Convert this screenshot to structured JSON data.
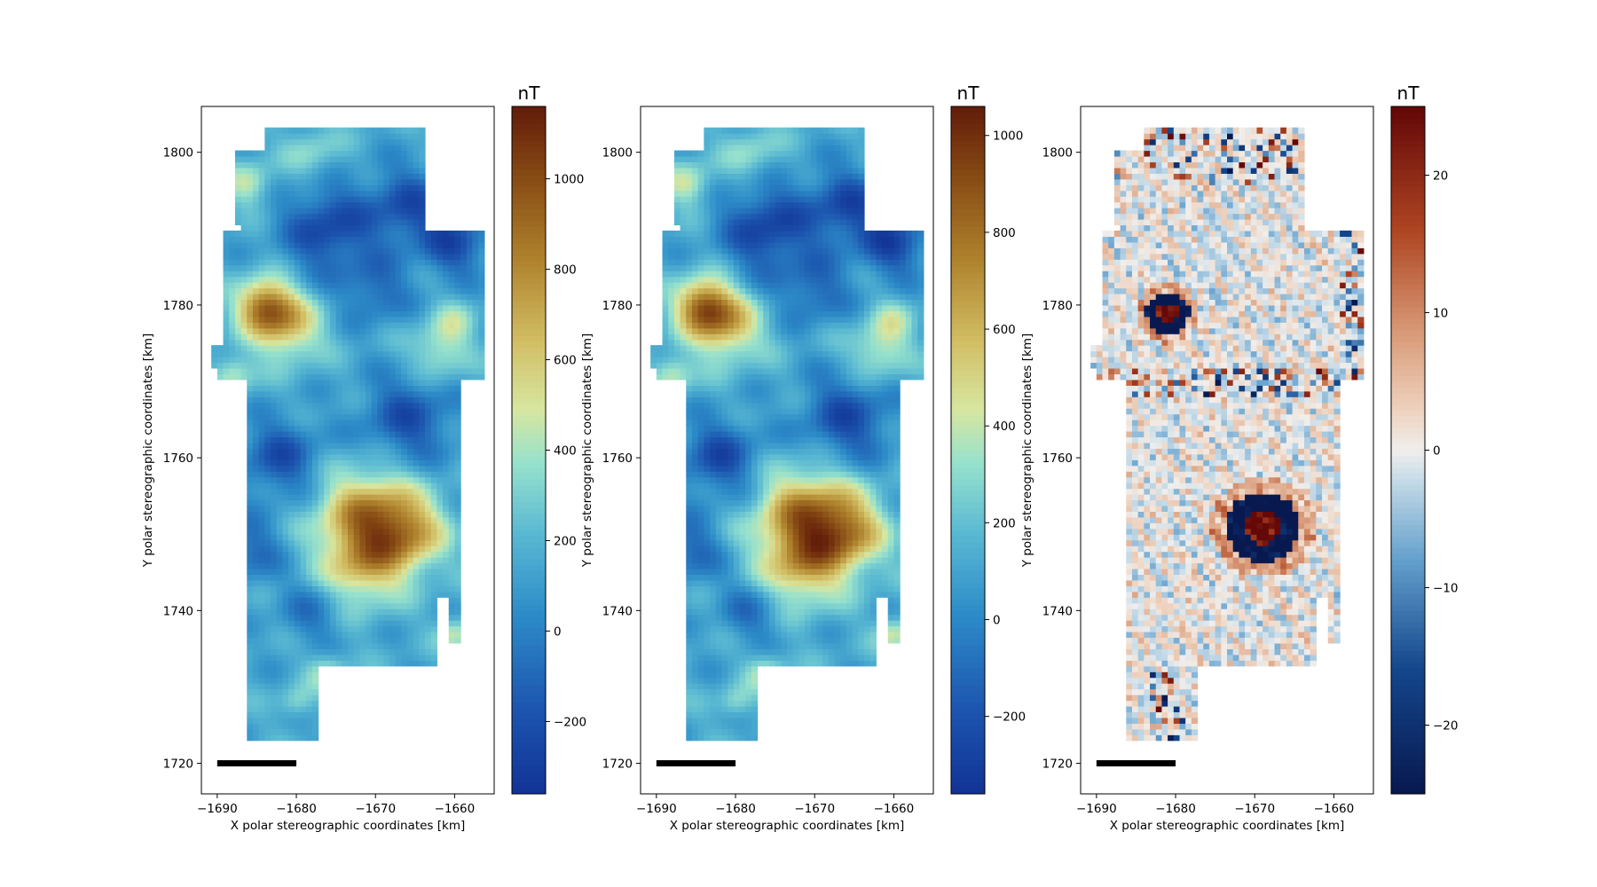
{
  "figure": {
    "panel_count": 3
  },
  "chart_data": [
    {
      "type": "heatmap",
      "panel": "left",
      "xlabel": "X polar stereographic coordinates [km]",
      "ylabel": "Y polar stereographic coordinates [km]",
      "xlim": [
        -1692,
        -1655
      ],
      "ylim": [
        1716,
        1806
      ],
      "x_ticks": [
        -1690,
        -1680,
        -1670,
        -1660
      ],
      "x_tick_labels": [
        "−1690",
        "−1680",
        "−1670",
        "−1660"
      ],
      "y_ticks": [
        1720,
        1740,
        1760,
        1780,
        1800
      ],
      "y_tick_labels": [
        "1720",
        "1740",
        "1760",
        "1780",
        "1800"
      ],
      "colormap": "gist_earth-like (blue-cyan-yellow-brown)",
      "colorbar": {
        "title": "nT",
        "vmin": -360,
        "vmax": 1160,
        "ticks": [
          -200,
          0,
          200,
          400,
          600,
          800,
          1000
        ],
        "tick_labels": [
          "−200",
          "0",
          "200",
          "400",
          "600",
          "800",
          "1000"
        ]
      },
      "anomalies": [
        {
          "x": -1684,
          "y": 1780,
          "value": 1000
        },
        {
          "x": -1670,
          "y": 1750,
          "value": 900
        },
        {
          "x": -1672,
          "y": 1754,
          "value": 1000
        },
        {
          "x": -1662,
          "y": 1774,
          "value": 500
        },
        {
          "x": -1686,
          "y": 1796,
          "value": 500
        }
      ],
      "scale_bar": {
        "x_start": -1690,
        "x_end": -1680,
        "y": 1720
      }
    },
    {
      "type": "heatmap",
      "panel": "middle",
      "xlabel": "X polar stereographic coordinates [km]",
      "ylabel": "Y polar stereographic coordinates [km]",
      "xlim": [
        -1692,
        -1655
      ],
      "ylim": [
        1716,
        1806
      ],
      "x_ticks": [
        -1690,
        -1680,
        -1670,
        -1660
      ],
      "x_tick_labels": [
        "−1690",
        "−1680",
        "−1670",
        "−1660"
      ],
      "y_ticks": [
        1720,
        1740,
        1760,
        1780,
        1800
      ],
      "y_tick_labels": [
        "1720",
        "1740",
        "1760",
        "1780",
        "1800"
      ],
      "colormap": "gist_earth-like (blue-cyan-yellow-brown)",
      "colorbar": {
        "title": "nT",
        "vmin": -360,
        "vmax": 1060,
        "ticks": [
          -200,
          0,
          200,
          400,
          600,
          800,
          1000
        ],
        "tick_labels": [
          "−200",
          "0",
          "200",
          "400",
          "600",
          "800",
          "1000"
        ]
      },
      "anomalies": [
        {
          "x": -1684,
          "y": 1780,
          "value": 950
        },
        {
          "x": -1670,
          "y": 1750,
          "value": 900
        },
        {
          "x": -1666,
          "y": 1752,
          "value": 800
        },
        {
          "x": -1662,
          "y": 1774,
          "value": 450
        }
      ],
      "scale_bar": {
        "x_start": -1690,
        "x_end": -1680,
        "y": 1720
      }
    },
    {
      "type": "heatmap",
      "panel": "right",
      "xlabel": "X polar stereographic coordinates [km]",
      "ylabel": "Y polar stereographic coordinates [km]",
      "xlim": [
        -1692,
        -1655
      ],
      "ylim": [
        1716,
        1806
      ],
      "x_ticks": [
        -1690,
        -1680,
        -1670,
        -1660
      ],
      "x_tick_labels": [
        "−1690",
        "−1680",
        "−1670",
        "−1660"
      ],
      "y_ticks": [
        1720,
        1740,
        1760,
        1780,
        1800
      ],
      "y_tick_labels": [
        "1720",
        "1740",
        "1760",
        "1780",
        "1800"
      ],
      "colormap": "diverging (dark blue-white-dark red)",
      "colorbar": {
        "title": "nT",
        "vmin": -25,
        "vmax": 25,
        "ticks": [
          -20,
          -10,
          0,
          10,
          20
        ],
        "tick_labels": [
          "−20",
          "−10",
          "0",
          "10",
          "20"
        ]
      },
      "anomalies": [
        {
          "x": -1681,
          "y": 1779,
          "value": 25
        },
        {
          "x": -1668,
          "y": 1752,
          "value": 25
        },
        {
          "x": -1670,
          "y": 1749,
          "value": -25
        }
      ],
      "scale_bar": {
        "x_start": -1690,
        "x_end": -1680,
        "y": 1720
      }
    }
  ]
}
